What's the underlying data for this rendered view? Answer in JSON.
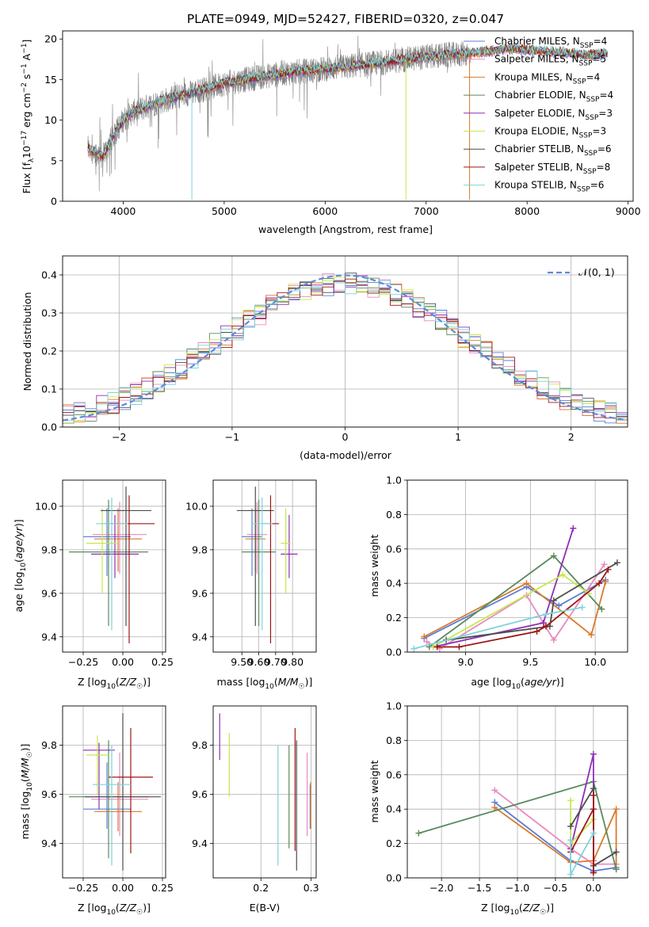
{
  "title": "PLATE=0949, MJD=52427, FIBERID=0320, z=0.047",
  "colors": [
    "#5b7fd6",
    "#e88ac0",
    "#d97a2b",
    "#5a8a5e",
    "#8e2fb5",
    "#c6e84a",
    "#4d4d4d",
    "#a01515",
    "#7fd3de"
  ],
  "legend_top": [
    {
      "pre": "Chabrier MILES, N",
      "sub": "SSP",
      "post": "=4"
    },
    {
      "pre": "Salpeter MILES, N",
      "sub": "SSP",
      "post": "=5"
    },
    {
      "pre": "Kroupa MILES, N",
      "sub": "SSP",
      "post": "=4"
    },
    {
      "pre": "Chabrier ELODIE, N",
      "sub": "SSP",
      "post": "=4"
    },
    {
      "pre": "Salpeter ELODIE, N",
      "sub": "SSP",
      "post": "=3"
    },
    {
      "pre": "Kroupa ELODIE, N",
      "sub": "SSP",
      "post": "=3"
    },
    {
      "pre": "Chabrier STELIB, N",
      "sub": "SSP",
      "post": "=6"
    },
    {
      "pre": "Salpeter STELIB, N",
      "sub": "SSP",
      "post": "=8"
    },
    {
      "pre": "Kroupa STELIB, N",
      "sub": "SSP",
      "post": "=6"
    }
  ],
  "chart_data": [
    {
      "id": "spectrum",
      "type": "line",
      "title": "PLATE=0949, MJD=52427, FIBERID=0320, z=0.047",
      "xlabel": "wavelength [Angstrom, rest frame]",
      "ylabel": {
        "pre": "Flux [f",
        "sub": "λ",
        "mid": "10",
        "sup1": "−17",
        "post": " erg cm",
        "sup2": "−2",
        "post2": " s",
        "sup3": "−1",
        "post3": " A",
        "sup4": "−1",
        "end": "]"
      },
      "xlim": [
        3400,
        9050
      ],
      "ylim": [
        0,
        21
      ],
      "xticks": [
        4000,
        5000,
        6000,
        7000,
        8000,
        9000
      ],
      "yticks": [
        0,
        5,
        10,
        15,
        20
      ],
      "continuum": [
        [
          3650,
          6.5
        ],
        [
          3800,
          5.5
        ],
        [
          3900,
          8
        ],
        [
          4000,
          10
        ],
        [
          4100,
          11
        ],
        [
          4300,
          12
        ],
        [
          4500,
          12.8
        ],
        [
          4800,
          13.8
        ],
        [
          5000,
          14.5
        ],
        [
          5300,
          15.2
        ],
        [
          5600,
          15.8
        ],
        [
          6000,
          16.3
        ],
        [
          6500,
          17
        ],
        [
          7000,
          17.8
        ],
        [
          7500,
          18.3
        ],
        [
          7800,
          18.8
        ],
        [
          8200,
          18.5
        ],
        [
          8600,
          18.0
        ],
        [
          8800,
          18.2
        ]
      ],
      "spikes": [
        [
          4680,
          0.2
        ],
        [
          6800,
          0.2
        ],
        [
          7430,
          0.2
        ]
      ]
    },
    {
      "id": "residuals",
      "type": "histogram",
      "xlabel": "(data-model)/error",
      "ylabel": "Normed distribution",
      "xlim": [
        -2.5,
        2.5
      ],
      "ylim": [
        0,
        0.45
      ],
      "xticks": [
        -2,
        -1,
        0,
        1,
        2
      ],
      "yticks": [
        0.0,
        0.1,
        0.2,
        0.3,
        0.4
      ],
      "bin_width": 0.1,
      "legend": "𝒩(0, 1)",
      "gaussian": {
        "mean": 0,
        "sigma": 1
      }
    },
    {
      "id": "age-vs-Z",
      "type": "errorbar",
      "xlabel": "Z [log10(Z/Z☉)]",
      "ylabel": "age [log10(age/yr)]",
      "xlim": [
        -0.38,
        0.27
      ],
      "ylim": [
        9.33,
        10.12
      ],
      "xticks": [
        -0.25,
        0.0,
        0.25
      ],
      "xticklabels": [
        "−0.25",
        "0.00",
        "0.25"
      ],
      "yticks": [
        9.4,
        9.6,
        9.8,
        10.0
      ],
      "points": [
        {
          "x": -0.1,
          "y": 9.86,
          "xerr": 0.15,
          "ymin": 9.68,
          "ymax": 9.99,
          "c": 0
        },
        {
          "x": -0.02,
          "y": 9.87,
          "xerr": 0.17,
          "ymin": 9.69,
          "ymax": 10.02,
          "c": 1
        },
        {
          "x": -0.03,
          "y": 9.85,
          "xerr": 0.15,
          "ymin": 9.7,
          "ymax": 9.99,
          "c": 2
        },
        {
          "x": -0.09,
          "y": 9.79,
          "xerr": 0.25,
          "ymin": 9.45,
          "ymax": 10.03,
          "c": 3
        },
        {
          "x": -0.05,
          "y": 9.78,
          "xerr": 0.15,
          "ymin": 9.67,
          "ymax": 9.96,
          "c": 4
        },
        {
          "x": -0.13,
          "y": 9.83,
          "xerr": 0.1,
          "ymin": 9.6,
          "ymax": 9.99,
          "c": 5
        },
        {
          "x": 0.02,
          "y": 9.98,
          "xerr": 0.16,
          "ymin": 9.45,
          "ymax": 10.09,
          "c": 6
        },
        {
          "x": 0.04,
          "y": 9.92,
          "xerr": 0.16,
          "ymin": 9.37,
          "ymax": 10.05,
          "c": 7
        },
        {
          "x": -0.07,
          "y": 9.92,
          "xerr": 0.1,
          "ymin": 9.43,
          "ymax": 10.04,
          "c": 8
        }
      ]
    },
    {
      "id": "age-vs-mass",
      "type": "errorbar",
      "xlabel": "mass [log10(M/M☉)]",
      "xlim": [
        9.33,
        9.94
      ],
      "ylim": [
        9.33,
        10.12
      ],
      "xticks": [
        9.5,
        9.6,
        9.7,
        9.8
      ],
      "xticklabels": [
        "9.50",
        "9.60",
        "9.70",
        "9.80"
      ],
      "yticks": [
        9.4,
        9.6,
        9.8,
        10.0
      ],
      "points": [
        {
          "x": 9.56,
          "y": 9.86,
          "xerr": 0.06,
          "ymin": 9.68,
          "ymax": 9.99,
          "c": 0
        },
        {
          "x": 9.59,
          "y": 9.87,
          "xerr": 0.06,
          "ymin": 9.69,
          "ymax": 10.02,
          "c": 1
        },
        {
          "x": 9.58,
          "y": 9.85,
          "xerr": 0.06,
          "ymin": 9.7,
          "ymax": 9.99,
          "c": 2
        },
        {
          "x": 9.6,
          "y": 9.79,
          "xerr": 0.1,
          "ymin": 9.45,
          "ymax": 10.03,
          "c": 3
        },
        {
          "x": 9.78,
          "y": 9.78,
          "xerr": 0.05,
          "ymin": 9.67,
          "ymax": 9.96,
          "c": 4
        },
        {
          "x": 9.76,
          "y": 9.83,
          "xerr": 0.03,
          "ymin": 9.6,
          "ymax": 9.99,
          "c": 5
        },
        {
          "x": 9.58,
          "y": 9.98,
          "xerr": 0.11,
          "ymin": 9.45,
          "ymax": 10.09,
          "c": 6
        },
        {
          "x": 9.67,
          "y": 9.92,
          "xerr": 0.05,
          "ymin": 9.37,
          "ymax": 10.05,
          "c": 7
        },
        {
          "x": 9.62,
          "y": 9.92,
          "xerr": 0.06,
          "ymin": 9.43,
          "ymax": 10.04,
          "c": 8
        }
      ]
    },
    {
      "id": "weight-vs-age",
      "type": "line",
      "xlabel": "age [log10(age/yr)]",
      "ylabel": "mass weight",
      "xlim": [
        8.55,
        10.25
      ],
      "ylim": [
        0,
        1
      ],
      "xticks": [
        9.0,
        9.5,
        10.0
      ],
      "xticklabels": [
        "9.0",
        "9.5",
        "10.0"
      ],
      "yticks": [
        0,
        0.2,
        0.4,
        0.6,
        0.8,
        1.0
      ],
      "yticklabels": [
        "0.0",
        "0.2",
        "0.4",
        "0.6",
        "0.8",
        "1.0"
      ],
      "series": [
        {
          "c": 0,
          "points": [
            [
              8.68,
              0.08
            ],
            [
              9.47,
              0.38
            ],
            [
              9.72,
              0.27
            ],
            [
              10.08,
              0.42
            ]
          ]
        },
        {
          "c": 1,
          "points": [
            [
              8.7,
              0.06
            ],
            [
              8.8,
              0.02
            ],
            [
              9.47,
              0.33
            ],
            [
              9.68,
              0.07
            ],
            [
              10.07,
              0.51
            ]
          ]
        },
        {
          "c": 2,
          "points": [
            [
              8.68,
              0.09
            ],
            [
              9.47,
              0.4
            ],
            [
              9.97,
              0.1
            ],
            [
              10.08,
              0.41
            ]
          ]
        },
        {
          "c": 3,
          "points": [
            [
              8.72,
              0.03
            ],
            [
              9.68,
              0.56
            ],
            [
              10.05,
              0.25
            ]
          ]
        },
        {
          "c": 4,
          "points": [
            [
              8.75,
              0.03
            ],
            [
              9.6,
              0.17
            ],
            [
              9.83,
              0.72
            ]
          ]
        },
        {
          "c": 5,
          "points": [
            [
              8.75,
              0.03
            ],
            [
              9.75,
              0.45
            ],
            [
              9.95,
              0.34
            ]
          ]
        },
        {
          "c": 6,
          "points": [
            [
              8.85,
              0.07
            ],
            [
              9.65,
              0.15
            ],
            [
              9.68,
              0.3
            ],
            [
              10.17,
              0.52
            ]
          ]
        },
        {
          "c": 7,
          "points": [
            [
              8.78,
              0.03
            ],
            [
              8.95,
              0.03
            ],
            [
              9.55,
              0.12
            ],
            [
              9.62,
              0.15
            ],
            [
              10.03,
              0.4
            ],
            [
              10.1,
              0.48
            ]
          ]
        },
        {
          "c": 8,
          "points": [
            [
              8.6,
              0.02
            ],
            [
              9.62,
              0.22
            ],
            [
              9.9,
              0.26
            ]
          ]
        }
      ]
    },
    {
      "id": "mass-vs-Z",
      "type": "errorbar",
      "xlabel": "Z [log10(Z/Z☉)]",
      "ylabel": "mass [log10(M/M☉)]",
      "xlim": [
        -0.38,
        0.27
      ],
      "ylim": [
        9.26,
        9.96
      ],
      "xticks": [
        -0.25,
        0.0,
        0.25
      ],
      "xticklabels": [
        "−0.25",
        "0.00",
        "0.25"
      ],
      "yticks": [
        9.4,
        9.6,
        9.8
      ],
      "points": [
        {
          "x": -0.1,
          "y": 9.54,
          "xerr": 0.15,
          "ymin": 9.46,
          "ymax": 9.73,
          "c": 0
        },
        {
          "x": -0.02,
          "y": 9.58,
          "xerr": 0.18,
          "ymin": 9.43,
          "ymax": 9.77,
          "c": 1
        },
        {
          "x": -0.03,
          "y": 9.53,
          "xerr": 0.15,
          "ymin": 9.45,
          "ymax": 9.65,
          "c": 2
        },
        {
          "x": -0.09,
          "y": 9.59,
          "xerr": 0.25,
          "ymin": 9.34,
          "ymax": 9.82,
          "c": 3
        },
        {
          "x": -0.15,
          "y": 9.78,
          "xerr": 0.1,
          "ymin": 9.54,
          "ymax": 9.81,
          "c": 4
        },
        {
          "x": -0.16,
          "y": 9.76,
          "xerr": 0.07,
          "ymin": 9.6,
          "ymax": 9.84,
          "c": 5
        },
        {
          "x": 0.0,
          "y": 9.59,
          "xerr": 0.24,
          "ymin": 9.29,
          "ymax": 9.93,
          "c": 6
        },
        {
          "x": 0.05,
          "y": 9.67,
          "xerr": 0.14,
          "ymin": 9.36,
          "ymax": 9.87,
          "c": 7
        },
        {
          "x": -0.07,
          "y": 9.64,
          "xerr": 0.12,
          "ymin": 9.31,
          "ymax": 9.8,
          "c": 8
        }
      ]
    },
    {
      "id": "mass-vs-EBV",
      "type": "errorbar",
      "xlabel": "E(B-V)",
      "xlim": [
        0.105,
        0.31
      ],
      "ylim": [
        9.26,
        9.96
      ],
      "xticks": [
        0.2,
        0.3
      ],
      "xticklabels": [
        "0.2",
        "0.3"
      ],
      "yticks": [
        9.4,
        9.6,
        9.8
      ],
      "points": [
        {
          "x": 0.298,
          "y": 9.54,
          "ymin": 9.46,
          "ymax": 9.64,
          "c": 0
        },
        {
          "x": 0.292,
          "y": 9.58,
          "ymin": 9.43,
          "ymax": 9.77,
          "c": 1
        },
        {
          "x": 0.299,
          "y": 9.53,
          "ymin": 9.46,
          "ymax": 9.65,
          "c": 2
        },
        {
          "x": 0.256,
          "y": 9.59,
          "ymin": 9.38,
          "ymax": 9.8,
          "c": 3
        },
        {
          "x": 0.118,
          "y": 9.78,
          "ymin": 9.74,
          "ymax": 9.93,
          "c": 4
        },
        {
          "x": 0.137,
          "y": 9.76,
          "ymin": 9.59,
          "ymax": 9.85,
          "c": 5
        },
        {
          "x": 0.271,
          "y": 9.59,
          "ymin": 9.29,
          "ymax": 9.82,
          "c": 6
        },
        {
          "x": 0.268,
          "y": 9.67,
          "ymin": 9.37,
          "ymax": 9.87,
          "c": 7
        },
        {
          "x": 0.234,
          "y": 9.64,
          "ymin": 9.31,
          "ymax": 9.8,
          "c": 8
        }
      ]
    },
    {
      "id": "weight-vs-Z",
      "type": "line",
      "xlabel": "Z [log10(Z/Z☉)]",
      "ylabel": "mass weight",
      "xlim": [
        -2.45,
        0.45
      ],
      "ylim": [
        0,
        1
      ],
      "xticks": [
        -2.0,
        -1.5,
        -1.0,
        -0.5,
        0.0
      ],
      "xticklabels": [
        "−2.0",
        "−1.5",
        "−1.0",
        "−0.5",
        "0.0"
      ],
      "yticks": [
        0,
        0.2,
        0.4,
        0.6,
        0.8,
        1.0
      ],
      "yticklabels": [
        "0.0",
        "0.2",
        "0.4",
        "0.6",
        "0.8",
        "1.0"
      ],
      "series": [
        {
          "c": 0,
          "points": [
            [
              -1.3,
              0.44
            ],
            [
              -0.3,
              0.1
            ],
            [
              0.0,
              0.04
            ],
            [
              0.3,
              0.06
            ]
          ]
        },
        {
          "c": 1,
          "points": [
            [
              -1.3,
              0.51
            ],
            [
              -0.3,
              0.17
            ],
            [
              0.0,
              0.08
            ],
            [
              0.3,
              0.08
            ]
          ]
        },
        {
          "c": 2,
          "points": [
            [
              -1.3,
              0.41
            ],
            [
              -0.3,
              0.09
            ],
            [
              0.0,
              0.1
            ],
            [
              0.3,
              0.4
            ],
            [
              0.3,
              0.05
            ]
          ]
        },
        {
          "c": 3,
          "points": [
            [
              -2.3,
              0.26
            ],
            [
              0.0,
              0.56
            ],
            [
              0.3,
              0.05
            ]
          ]
        },
        {
          "c": 4,
          "points": [
            [
              -0.3,
              0.17
            ],
            [
              0.0,
              0.72
            ],
            [
              0.0,
              0.03
            ]
          ]
        },
        {
          "c": 5,
          "points": [
            [
              -0.3,
              0.45
            ],
            [
              -0.3,
              0.2
            ],
            [
              0.0,
              0.34
            ]
          ]
        },
        {
          "c": 6,
          "points": [
            [
              -0.3,
              0.3
            ],
            [
              0.0,
              0.52
            ],
            [
              0.0,
              0.07
            ],
            [
              0.3,
              0.15
            ]
          ]
        },
        {
          "c": 7,
          "points": [
            [
              -0.3,
              0.15
            ],
            [
              0.0,
              0.4
            ],
            [
              0.0,
              0.48
            ],
            [
              0.0,
              0.03
            ]
          ]
        },
        {
          "c": 8,
          "points": [
            [
              -0.3,
              0.22
            ],
            [
              -0.3,
              0.02
            ],
            [
              0.0,
              0.26
            ]
          ]
        }
      ]
    }
  ]
}
